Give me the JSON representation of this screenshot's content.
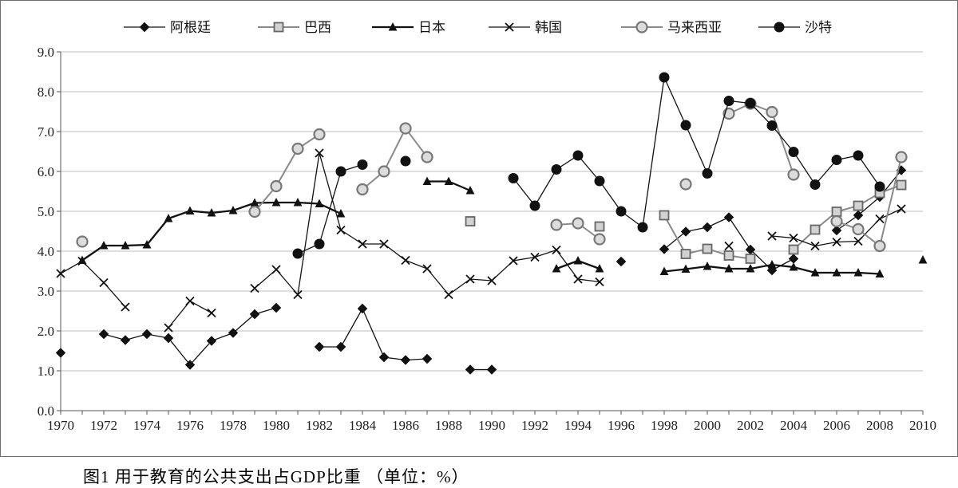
{
  "caption": "图1  用于教育的公共支出占GDP比重  （单位：%）",
  "chart_data": {
    "type": "line",
    "title": "",
    "xlabel": "",
    "ylabel": "",
    "xlim": [
      1970,
      2010
    ],
    "ylim": [
      0,
      9
    ],
    "grid": true,
    "legend_position": "top",
    "x_ticks": [
      "1970",
      "1972",
      "1974",
      "1976",
      "1978",
      "1980",
      "1982",
      "1984",
      "1986",
      "1988",
      "1990",
      "1992",
      "1994",
      "1996",
      "1998",
      "2000",
      "2002",
      "2004",
      "2006",
      "2008",
      "2010"
    ],
    "y_ticks": [
      "0.0",
      "1.0",
      "2.0",
      "3.0",
      "4.0",
      "5.0",
      "6.0",
      "7.0",
      "8.0",
      "9.0"
    ],
    "series": [
      {
        "name": "阿根廷",
        "marker": "diamond",
        "color": "#111111",
        "points": [
          [
            1970,
            1.45
          ],
          [
            1972,
            1.92
          ],
          [
            1973,
            1.77
          ],
          [
            1974,
            1.92
          ],
          [
            1975,
            1.82
          ],
          [
            1976,
            1.15
          ],
          [
            1977,
            1.75
          ],
          [
            1978,
            1.95
          ],
          [
            1979,
            2.42
          ],
          [
            1980,
            2.58
          ],
          [
            1982,
            1.6
          ],
          [
            1983,
            1.6
          ],
          [
            1984,
            2.56
          ],
          [
            1985,
            1.34
          ],
          [
            1986,
            1.27
          ],
          [
            1987,
            1.3
          ],
          [
            1989,
            1.03
          ],
          [
            1990,
            1.03
          ],
          [
            1996,
            3.74
          ],
          [
            1998,
            4.05
          ],
          [
            1999,
            4.49
          ],
          [
            2000,
            4.6
          ],
          [
            2001,
            4.85
          ],
          [
            2002,
            4.04
          ],
          [
            2003,
            3.52
          ],
          [
            2004,
            3.81
          ],
          [
            2006,
            4.52
          ],
          [
            2007,
            4.9
          ],
          [
            2008,
            5.36
          ],
          [
            2009,
            6.03
          ]
        ]
      },
      {
        "name": "巴西",
        "marker": "square",
        "color": "#8a8a8a",
        "points": [
          [
            1989,
            4.75
          ],
          [
            1995,
            4.62
          ],
          [
            1998,
            4.9
          ],
          [
            1999,
            3.93
          ],
          [
            2000,
            4.06
          ],
          [
            2001,
            3.89
          ],
          [
            2002,
            3.81
          ],
          [
            2004,
            4.04
          ],
          [
            2005,
            4.54
          ],
          [
            2006,
            4.99
          ],
          [
            2007,
            5.14
          ],
          [
            2008,
            5.46
          ],
          [
            2009,
            5.66
          ]
        ]
      },
      {
        "name": "日本",
        "marker": "triangle",
        "color": "#111111",
        "points": [
          [
            1971,
            3.77
          ],
          [
            1972,
            4.14
          ],
          [
            1973,
            4.14
          ],
          [
            1974,
            4.16
          ],
          [
            1975,
            4.82
          ],
          [
            1976,
            5.01
          ],
          [
            1977,
            4.96
          ],
          [
            1978,
            5.02
          ],
          [
            1979,
            5.21
          ],
          [
            1980,
            5.22
          ],
          [
            1981,
            5.22
          ],
          [
            1982,
            5.19
          ],
          [
            1983,
            4.94
          ],
          [
            1987,
            5.75
          ],
          [
            1988,
            5.75
          ],
          [
            1989,
            5.52
          ],
          [
            1993,
            3.56
          ],
          [
            1994,
            3.76
          ],
          [
            1995,
            3.56
          ],
          [
            1998,
            3.49
          ],
          [
            1999,
            3.55
          ],
          [
            2000,
            3.62
          ],
          [
            2001,
            3.56
          ],
          [
            2002,
            3.56
          ],
          [
            2003,
            3.66
          ],
          [
            2004,
            3.6
          ],
          [
            2005,
            3.46
          ],
          [
            2006,
            3.46
          ],
          [
            2007,
            3.46
          ],
          [
            2008,
            3.43
          ],
          [
            2010,
            3.78
          ]
        ]
      },
      {
        "name": "韩国",
        "marker": "x",
        "color": "#111111",
        "points": [
          [
            1970,
            3.44
          ],
          [
            1971,
            3.75
          ],
          [
            1972,
            3.21
          ],
          [
            1973,
            2.6
          ],
          [
            1975,
            2.08
          ],
          [
            1976,
            2.75
          ],
          [
            1977,
            2.45
          ],
          [
            1979,
            3.07
          ],
          [
            1980,
            3.54
          ],
          [
            1981,
            2.91
          ],
          [
            1982,
            6.46
          ],
          [
            1983,
            4.53
          ],
          [
            1984,
            4.18
          ],
          [
            1985,
            4.18
          ],
          [
            1986,
            3.77
          ],
          [
            1987,
            3.56
          ],
          [
            1988,
            2.91
          ],
          [
            1989,
            3.3
          ],
          [
            1990,
            3.26
          ],
          [
            1991,
            3.76
          ],
          [
            1992,
            3.85
          ],
          [
            1993,
            4.03
          ],
          [
            1994,
            3.3
          ],
          [
            1995,
            3.23
          ],
          [
            2001,
            4.13
          ],
          [
            2003,
            4.38
          ],
          [
            2004,
            4.33
          ],
          [
            2005,
            4.13
          ],
          [
            2006,
            4.23
          ],
          [
            2007,
            4.25
          ],
          [
            2008,
            4.81
          ],
          [
            2009,
            5.06
          ]
        ]
      },
      {
        "name": "马来西亚",
        "marker": "open-circle",
        "color": "#8a8a8a",
        "points": [
          [
            1971,
            4.24
          ],
          [
            1979,
            4.99
          ],
          [
            1980,
            5.63
          ],
          [
            1981,
            6.57
          ],
          [
            1982,
            6.93
          ],
          [
            1984,
            5.55
          ],
          [
            1985,
            6.0
          ],
          [
            1986,
            7.08
          ],
          [
            1987,
            6.36
          ],
          [
            1993,
            4.66
          ],
          [
            1994,
            4.7
          ],
          [
            1995,
            4.3
          ],
          [
            1999,
            5.68
          ],
          [
            2001,
            7.45
          ],
          [
            2002,
            7.7
          ],
          [
            2003,
            7.49
          ],
          [
            2004,
            5.92
          ],
          [
            2006,
            4.75
          ],
          [
            2007,
            4.55
          ],
          [
            2008,
            4.13
          ],
          [
            2009,
            6.36
          ]
        ]
      },
      {
        "name": "沙特",
        "marker": "filled-circle",
        "color": "#111111",
        "points": [
          [
            1981,
            3.94
          ],
          [
            1982,
            4.18
          ],
          [
            1983,
            6.0
          ],
          [
            1984,
            6.17
          ],
          [
            1986,
            6.26
          ],
          [
            1991,
            5.83
          ],
          [
            1992,
            5.14
          ],
          [
            1993,
            6.05
          ],
          [
            1994,
            6.4
          ],
          [
            1995,
            5.76
          ],
          [
            1996,
            5.0
          ],
          [
            1997,
            4.6
          ],
          [
            1998,
            8.36
          ],
          [
            1999,
            7.16
          ],
          [
            2000,
            5.95
          ],
          [
            2001,
            7.77
          ],
          [
            2002,
            7.71
          ],
          [
            2003,
            7.15
          ],
          [
            2004,
            6.49
          ],
          [
            2005,
            5.67
          ],
          [
            2006,
            6.29
          ],
          [
            2007,
            6.4
          ],
          [
            2008,
            5.62
          ]
        ]
      }
    ]
  }
}
